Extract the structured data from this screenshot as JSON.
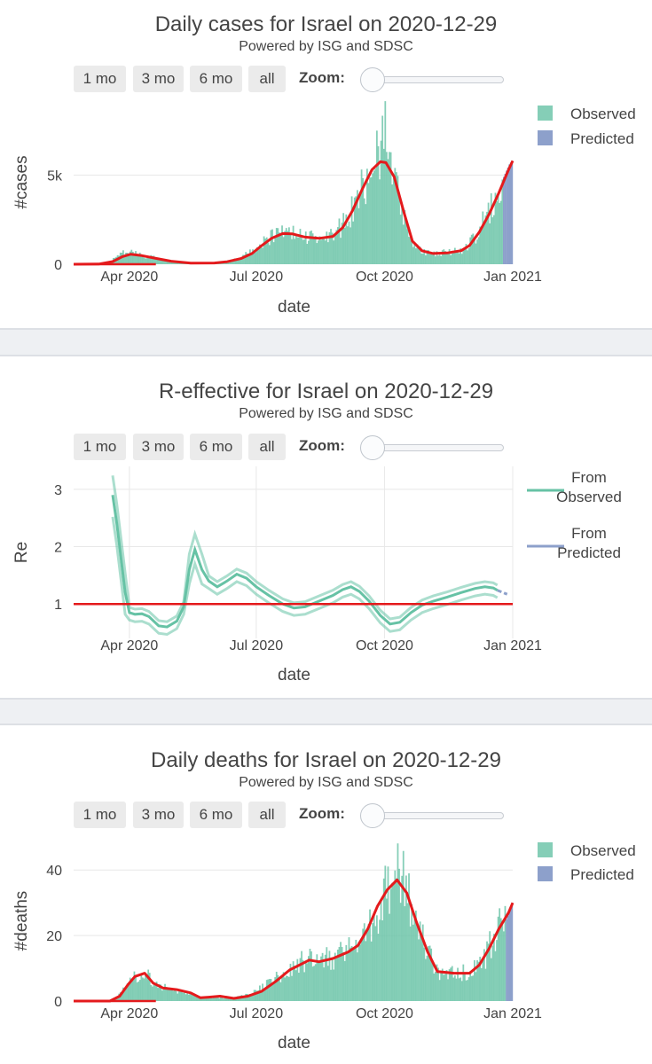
{
  "controls": {
    "buttons": [
      "1 mo",
      "3 mo",
      "6 mo",
      "all"
    ],
    "zoom_label": "Zoom:"
  },
  "colors": {
    "observed": "#66c2a5",
    "predicted": "#8da0cb",
    "trend": "#e41a1c",
    "grid": "#e8e8e8"
  },
  "chart_data": [
    {
      "type": "bar",
      "title": "Daily cases for Israel on 2020-12-29",
      "subtitle": "Powered by ISG and SDSC",
      "xlabel": "date",
      "ylabel": "#cases",
      "xlim": [
        "2020-02-21",
        "2021-01-01"
      ],
      "ylim": [
        0,
        9200
      ],
      "yticks": [
        0,
        5000
      ],
      "ytick_labels": [
        "0",
        "5k"
      ],
      "xticks": [
        "2020-04-01",
        "2020-07-01",
        "2020-10-01",
        "2021-01-01"
      ],
      "xtick_labels": [
        "Apr 2020",
        "Jul 2020",
        "Oct 2020",
        "Jan 2021"
      ],
      "legend": [
        "Observed",
        "Predicted"
      ],
      "predicted_from": "2020-12-25",
      "series": [
        {
          "name": "Observed",
          "kind": "bar",
          "points": [
            [
              "2020-02-21",
              0
            ],
            [
              "2020-03-07",
              5
            ],
            [
              "2020-03-14",
              50
            ],
            [
              "2020-03-21",
              300
            ],
            [
              "2020-03-27",
              600
            ],
            [
              "2020-04-01",
              650
            ],
            [
              "2020-04-08",
              500
            ],
            [
              "2020-04-20",
              330
            ],
            [
              "2020-05-01",
              150
            ],
            [
              "2020-05-10",
              50
            ],
            [
              "2020-05-20",
              20
            ],
            [
              "2020-06-01",
              60
            ],
            [
              "2020-06-10",
              150
            ],
            [
              "2020-06-20",
              350
            ],
            [
              "2020-06-28",
              800
            ],
            [
              "2020-07-05",
              1200
            ],
            [
              "2020-07-12",
              1500
            ],
            [
              "2020-07-20",
              1800
            ],
            [
              "2020-07-28",
              1600
            ],
            [
              "2020-08-05",
              1500
            ],
            [
              "2020-08-15",
              1500
            ],
            [
              "2020-08-25",
              1700
            ],
            [
              "2020-09-01",
              2200
            ],
            [
              "2020-09-08",
              3100
            ],
            [
              "2020-09-15",
              4200
            ],
            [
              "2020-09-22",
              5300
            ],
            [
              "2020-09-28",
              6500
            ],
            [
              "2020-10-01",
              7500
            ],
            [
              "2020-10-05",
              6000
            ],
            [
              "2020-10-10",
              4200
            ],
            [
              "2020-10-15",
              2300
            ],
            [
              "2020-10-20",
              1100
            ],
            [
              "2020-10-27",
              700
            ],
            [
              "2020-11-05",
              600
            ],
            [
              "2020-11-15",
              650
            ],
            [
              "2020-11-25",
              800
            ],
            [
              "2020-12-01",
              1200
            ],
            [
              "2020-12-08",
              1900
            ],
            [
              "2020-12-15",
              3000
            ],
            [
              "2020-12-22",
              4200
            ],
            [
              "2020-12-25",
              4700
            ]
          ]
        },
        {
          "name": "Predicted",
          "kind": "bar",
          "points": [
            [
              "2020-12-25",
              4900
            ],
            [
              "2020-12-29",
              5600
            ],
            [
              "2020-12-31",
              5800
            ]
          ]
        },
        {
          "name": "trend",
          "kind": "line",
          "points": [
            [
              "2020-02-21",
              0
            ],
            [
              "2020-03-10",
              10
            ],
            [
              "2020-03-20",
              150
            ],
            [
              "2020-03-27",
              430
            ],
            [
              "2020-04-02",
              560
            ],
            [
              "2020-04-10",
              480
            ],
            [
              "2020-04-20",
              330
            ],
            [
              "2020-05-01",
              170
            ],
            [
              "2020-05-15",
              60
            ],
            [
              "2020-06-01",
              70
            ],
            [
              "2020-06-10",
              140
            ],
            [
              "2020-06-20",
              320
            ],
            [
              "2020-06-28",
              600
            ],
            [
              "2020-07-05",
              1050
            ],
            [
              "2020-07-12",
              1450
            ],
            [
              "2020-07-20",
              1720
            ],
            [
              "2020-07-27",
              1700
            ],
            [
              "2020-08-05",
              1520
            ],
            [
              "2020-08-15",
              1450
            ],
            [
              "2020-08-25",
              1560
            ],
            [
              "2020-09-01",
              2050
            ],
            [
              "2020-09-08",
              3000
            ],
            [
              "2020-09-15",
              4200
            ],
            [
              "2020-09-22",
              5300
            ],
            [
              "2020-09-28",
              5750
            ],
            [
              "2020-10-02",
              5700
            ],
            [
              "2020-10-08",
              4900
            ],
            [
              "2020-10-15",
              2900
            ],
            [
              "2020-10-21",
              1300
            ],
            [
              "2020-10-28",
              750
            ],
            [
              "2020-11-05",
              600
            ],
            [
              "2020-11-15",
              630
            ],
            [
              "2020-11-25",
              760
            ],
            [
              "2020-12-01",
              1050
            ],
            [
              "2020-12-08",
              1800
            ],
            [
              "2020-12-15",
              2800
            ],
            [
              "2020-12-22",
              4000
            ],
            [
              "2020-12-29",
              5300
            ],
            [
              "2021-01-01",
              5800
            ]
          ]
        }
      ]
    },
    {
      "type": "line",
      "title": "R-effective for Israel on 2020-12-29",
      "subtitle": "Powered by ISG and SDSC",
      "xlabel": "date",
      "ylabel": "Re",
      "xlim": [
        "2020-02-21",
        "2021-01-01"
      ],
      "ylim": [
        0.4,
        3.4
      ],
      "yticks": [
        1,
        2,
        3
      ],
      "ytick_labels": [
        "1",
        "2",
        "3"
      ],
      "xticks": [
        "2020-04-01",
        "2020-07-01",
        "2020-10-01",
        "2021-01-01"
      ],
      "xtick_labels": [
        "Apr 2020",
        "Jul 2020",
        "Oct 2020",
        "Jan 2021"
      ],
      "legend": [
        "From Observed",
        "From Predicted"
      ],
      "reference_line": 1,
      "series": [
        {
          "name": "From Observed",
          "kind": "line",
          "points": [
            [
              "2020-03-20",
              2.9
            ],
            [
              "2020-03-23",
              2.4
            ],
            [
              "2020-03-26",
              1.8
            ],
            [
              "2020-03-29",
              1.2
            ],
            [
              "2020-04-01",
              0.85
            ],
            [
              "2020-04-05",
              0.82
            ],
            [
              "2020-04-10",
              0.83
            ],
            [
              "2020-04-15",
              0.78
            ],
            [
              "2020-04-22",
              0.62
            ],
            [
              "2020-04-28",
              0.6
            ],
            [
              "2020-05-05",
              0.7
            ],
            [
              "2020-05-10",
              0.95
            ],
            [
              "2020-05-14",
              1.6
            ],
            [
              "2020-05-18",
              1.95
            ],
            [
              "2020-05-23",
              1.6
            ],
            [
              "2020-05-28",
              1.4
            ],
            [
              "2020-06-03",
              1.3
            ],
            [
              "2020-06-10",
              1.4
            ],
            [
              "2020-06-17",
              1.52
            ],
            [
              "2020-06-24",
              1.45
            ],
            [
              "2020-07-01",
              1.3
            ],
            [
              "2020-07-10",
              1.15
            ],
            [
              "2020-07-20",
              1.0
            ],
            [
              "2020-07-28",
              0.93
            ],
            [
              "2020-08-05",
              0.95
            ],
            [
              "2020-08-15",
              1.05
            ],
            [
              "2020-08-25",
              1.15
            ],
            [
              "2020-09-01",
              1.25
            ],
            [
              "2020-09-07",
              1.3
            ],
            [
              "2020-09-13",
              1.22
            ],
            [
              "2020-09-20",
              1.05
            ],
            [
              "2020-09-28",
              0.8
            ],
            [
              "2020-10-05",
              0.65
            ],
            [
              "2020-10-12",
              0.68
            ],
            [
              "2020-10-20",
              0.85
            ],
            [
              "2020-10-28",
              0.98
            ],
            [
              "2020-11-05",
              1.05
            ],
            [
              "2020-11-15",
              1.12
            ],
            [
              "2020-11-25",
              1.2
            ],
            [
              "2020-12-05",
              1.27
            ],
            [
              "2020-12-12",
              1.3
            ],
            [
              "2020-12-18",
              1.28
            ],
            [
              "2020-12-21",
              1.24
            ]
          ]
        },
        {
          "name": "From Predicted",
          "kind": "line",
          "points": [
            [
              "2020-12-21",
              1.24
            ],
            [
              "2020-12-25",
              1.2
            ],
            [
              "2020-12-28",
              1.17
            ]
          ]
        }
      ]
    },
    {
      "type": "bar",
      "title": "Daily deaths for Israel on 2020-12-29",
      "subtitle": "Powered by ISG and SDSC",
      "xlabel": "date",
      "ylabel": "#deaths",
      "xlim": [
        "2020-02-21",
        "2021-01-01"
      ],
      "ylim": [
        0,
        49
      ],
      "yticks": [
        0,
        20,
        40
      ],
      "ytick_labels": [
        "0",
        "20",
        "40"
      ],
      "xticks": [
        "2020-04-01",
        "2020-07-01",
        "2020-10-01",
        "2021-01-01"
      ],
      "xtick_labels": [
        "Apr 2020",
        "Jul 2020",
        "Oct 2020",
        "Jan 2021"
      ],
      "legend": [
        "Observed",
        "Predicted"
      ],
      "predicted_from": "2020-12-27",
      "series": [
        {
          "name": "Observed",
          "kind": "bar",
          "points": [
            [
              "2020-02-21",
              0
            ],
            [
              "2020-03-15",
              0
            ],
            [
              "2020-03-22",
              1
            ],
            [
              "2020-03-28",
              4
            ],
            [
              "2020-04-03",
              7
            ],
            [
              "2020-04-10",
              9
            ],
            [
              "2020-04-17",
              6
            ],
            [
              "2020-04-25",
              4
            ],
            [
              "2020-05-05",
              3
            ],
            [
              "2020-05-15",
              2
            ],
            [
              "2020-05-25",
              1
            ],
            [
              "2020-06-05",
              1
            ],
            [
              "2020-06-15",
              1
            ],
            [
              "2020-06-25",
              2
            ],
            [
              "2020-07-05",
              4
            ],
            [
              "2020-07-15",
              7
            ],
            [
              "2020-07-25",
              10
            ],
            [
              "2020-08-05",
              12
            ],
            [
              "2020-08-15",
              13
            ],
            [
              "2020-08-25",
              13
            ],
            [
              "2020-09-05",
              15
            ],
            [
              "2020-09-15",
              18
            ],
            [
              "2020-09-25",
              25
            ],
            [
              "2020-10-01",
              32
            ],
            [
              "2020-10-08",
              37
            ],
            [
              "2020-10-15",
              34
            ],
            [
              "2020-10-22",
              25
            ],
            [
              "2020-10-30",
              15
            ],
            [
              "2020-11-07",
              9
            ],
            [
              "2020-11-20",
              8
            ],
            [
              "2020-12-01",
              9
            ],
            [
              "2020-12-10",
              12
            ],
            [
              "2020-12-20",
              20
            ],
            [
              "2020-12-27",
              24
            ]
          ]
        },
        {
          "name": "Predicted",
          "kind": "bar",
          "points": [
            [
              "2020-12-27",
              25
            ],
            [
              "2020-12-30",
              28
            ],
            [
              "2020-12-31",
              30
            ]
          ]
        },
        {
          "name": "trend",
          "kind": "line",
          "points": [
            [
              "2020-02-21",
              0
            ],
            [
              "2020-03-18",
              0
            ],
            [
              "2020-03-25",
              1.5
            ],
            [
              "2020-03-31",
              5
            ],
            [
              "2020-04-05",
              7.5
            ],
            [
              "2020-04-12",
              8.5
            ],
            [
              "2020-04-18",
              5.5
            ],
            [
              "2020-04-25",
              4
            ],
            [
              "2020-05-05",
              3.5
            ],
            [
              "2020-05-15",
              2.5
            ],
            [
              "2020-05-22",
              1
            ],
            [
              "2020-05-28",
              1.2
            ],
            [
              "2020-06-05",
              1.5
            ],
            [
              "2020-06-15",
              0.8
            ],
            [
              "2020-06-25",
              1.5
            ],
            [
              "2020-07-05",
              3
            ],
            [
              "2020-07-15",
              6
            ],
            [
              "2020-07-25",
              9.5
            ],
            [
              "2020-08-01",
              11
            ],
            [
              "2020-08-08",
              12.5
            ],
            [
              "2020-08-15",
              12
            ],
            [
              "2020-08-25",
              13
            ],
            [
              "2020-09-05",
              15
            ],
            [
              "2020-09-12",
              17
            ],
            [
              "2020-09-19",
              22
            ],
            [
              "2020-09-26",
              29
            ],
            [
              "2020-10-03",
              34
            ],
            [
              "2020-10-10",
              37
            ],
            [
              "2020-10-17",
              33
            ],
            [
              "2020-10-24",
              24
            ],
            [
              "2020-11-01",
              15
            ],
            [
              "2020-11-08",
              9
            ],
            [
              "2020-11-20",
              8.5
            ],
            [
              "2020-12-01",
              8.5
            ],
            [
              "2020-12-08",
              11
            ],
            [
              "2020-12-15",
              16
            ],
            [
              "2020-12-22",
              22
            ],
            [
              "2020-12-29",
              27
            ],
            [
              "2021-01-01",
              30
            ]
          ]
        }
      ]
    }
  ]
}
